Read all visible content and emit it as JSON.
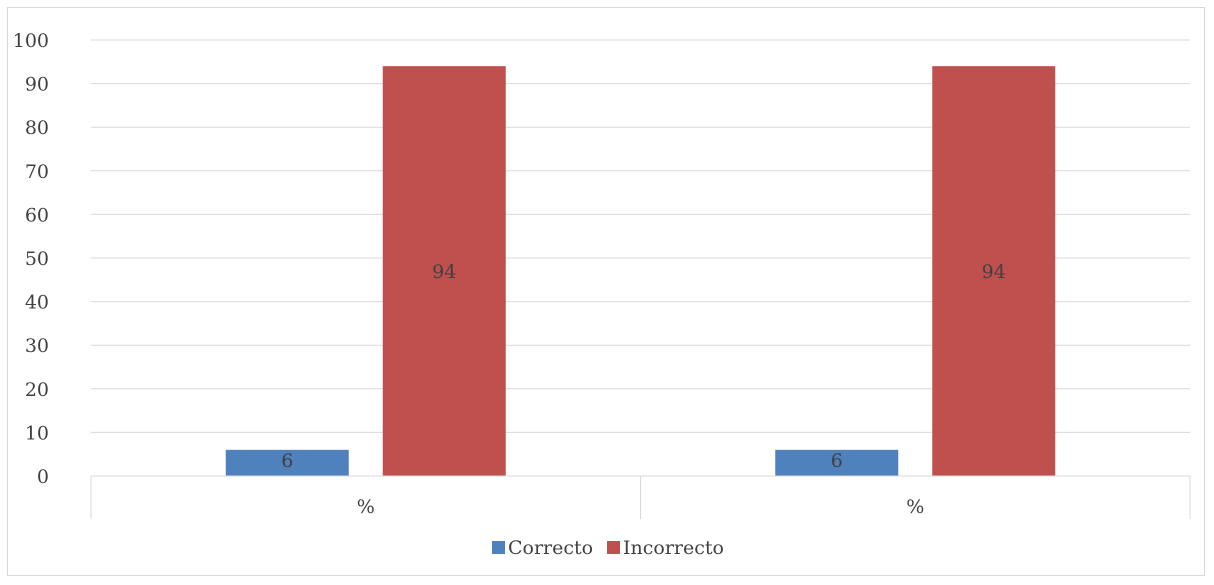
{
  "chart_data": {
    "type": "bar",
    "categories": [
      "%",
      "%"
    ],
    "series": [
      {
        "name": "Correcto",
        "values": [
          6,
          6
        ],
        "color": "#4f81bd"
      },
      {
        "name": "Incorrecto",
        "values": [
          94,
          94
        ],
        "color": "#c0504d"
      }
    ],
    "ylim": [
      0,
      100
    ],
    "yticks": [
      0,
      10,
      20,
      30,
      40,
      50,
      60,
      70,
      80,
      90,
      100
    ],
    "grid": true,
    "legend_position": "bottom",
    "data_labels": true
  }
}
